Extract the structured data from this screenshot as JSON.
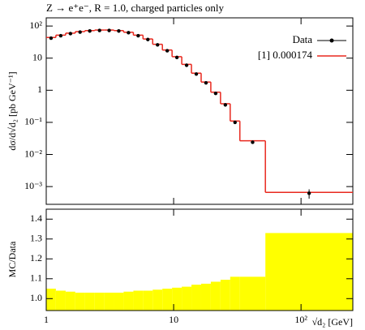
{
  "chart_data": [
    {
      "type": "histogram",
      "title": "Z → e⁺e⁻, R = 1.0, charged particles only",
      "ylabel": "dσ/d√d₂ [pb GeV⁻¹]",
      "xlog": true,
      "ylog": true,
      "xlim": [
        1,
        255
      ],
      "ylim": [
        0.00028,
        180
      ],
      "xticks": [
        1,
        10,
        {
          "value": 100,
          "label": "10²"
        }
      ],
      "yticks": [
        {
          "value": 100,
          "label": "10²"
        },
        10,
        1,
        {
          "value": 0.1,
          "label": "10⁻¹"
        },
        {
          "value": 0.01,
          "label": "10⁻²"
        },
        {
          "value": 0.001,
          "label": "10⁻³"
        }
      ],
      "legend": "upper right",
      "bins": [
        1,
        1.19,
        1.42,
        1.69,
        2.01,
        2.4,
        2.86,
        3.4,
        4.05,
        4.83,
        5.75,
        6.85,
        8.16,
        9.72,
        11.58,
        13.8,
        16.44,
        19.58,
        23.33,
        27.79,
        33.1,
        52.5,
        255
      ],
      "series": [
        {
          "name": "Data",
          "color": "#000000",
          "style": "points",
          "values": [
            42,
            50,
            58,
            65,
            70,
            73,
            73,
            70,
            62,
            50,
            38,
            26,
            17,
            10.5,
            6,
            3.2,
            1.7,
            0.8,
            0.35,
            0.1,
            0.024,
            0.00062
          ],
          "errors": [
            null,
            null,
            null,
            null,
            null,
            null,
            null,
            null,
            null,
            null,
            null,
            null,
            null,
            null,
            null,
            null,
            null,
            null,
            null,
            null,
            null,
            0.0002
          ]
        },
        {
          "name": "[1] 0.000174",
          "color": "#e8281e",
          "style": "step",
          "values": [
            44,
            52,
            60,
            67,
            72,
            75,
            75,
            72,
            64,
            52,
            39.5,
            27,
            17.9,
            11.1,
            6.4,
            3.4,
            1.8,
            0.87,
            0.38,
            0.11,
            0.0266,
            0.00066
          ]
        }
      ]
    },
    {
      "type": "histogram",
      "ylabel": "MC/Data",
      "xlabel": "√d₂ [GeV]",
      "xlog": true,
      "xlim": [
        1,
        255
      ],
      "ylim": [
        0.94,
        1.45
      ],
      "xticks": [
        1,
        10,
        {
          "value": 100,
          "label": "10²"
        }
      ],
      "yticks": [
        {
          "value": 1,
          "label": "1.0"
        },
        1.1,
        1.2,
        1.3,
        1.4
      ],
      "bins": [
        1,
        1.19,
        1.42,
        1.69,
        2.01,
        2.4,
        2.86,
        3.4,
        4.05,
        4.83,
        5.75,
        6.85,
        8.16,
        9.72,
        11.58,
        13.8,
        16.44,
        19.58,
        23.33,
        27.79,
        33.1,
        52.5,
        255
      ],
      "color": "#ffff00",
      "values": [
        1.05,
        1.04,
        1.035,
        1.03,
        1.03,
        1.03,
        1.03,
        1.03,
        1.035,
        1.04,
        1.04,
        1.045,
        1.05,
        1.055,
        1.06,
        1.07,
        1.075,
        1.085,
        1.095,
        1.11,
        1.11,
        1.33
      ]
    }
  ]
}
